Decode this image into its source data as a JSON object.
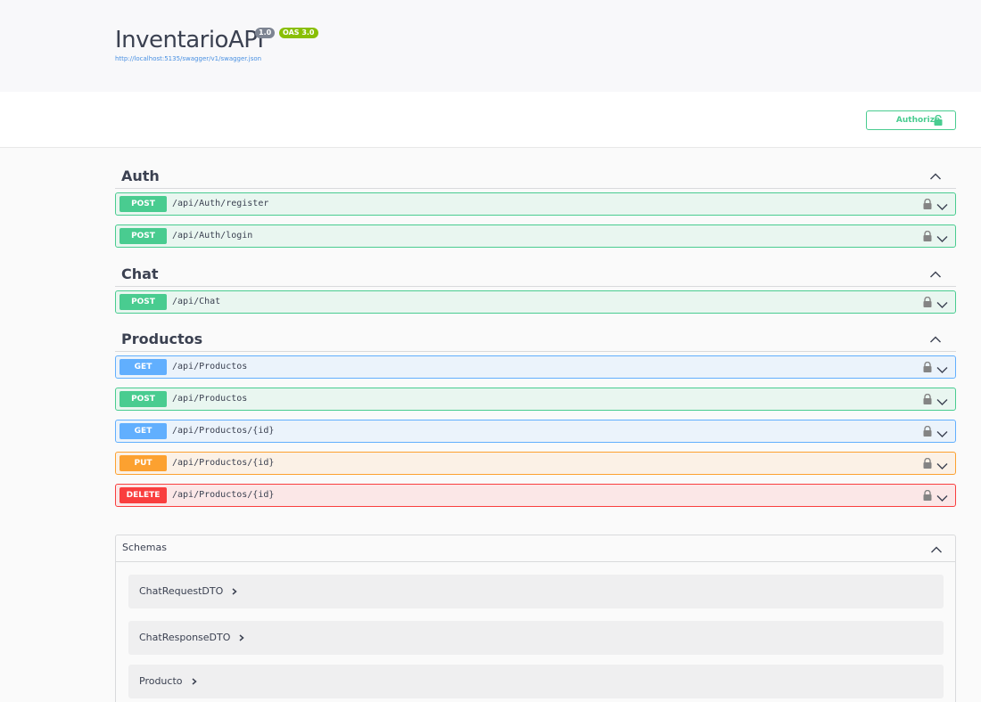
{
  "info": {
    "title": "InventarioAPI",
    "version": "1.0",
    "oas": "OAS 3.0",
    "url": "http://localhost:5135/swagger/v1/swagger.json"
  },
  "scheme": {
    "authorize_label": "Authorize"
  },
  "tags": [
    {
      "name": "Auth",
      "operations": [
        {
          "method": "POST",
          "path": "/api/Auth/register"
        },
        {
          "method": "POST",
          "path": "/api/Auth/login"
        }
      ]
    },
    {
      "name": "Chat",
      "operations": [
        {
          "method": "POST",
          "path": "/api/Chat"
        }
      ]
    },
    {
      "name": "Productos",
      "operations": [
        {
          "method": "GET",
          "path": "/api/Productos"
        },
        {
          "method": "POST",
          "path": "/api/Productos"
        },
        {
          "method": "GET",
          "path": "/api/Productos/{id}"
        },
        {
          "method": "PUT",
          "path": "/api/Productos/{id}"
        },
        {
          "method": "DELETE",
          "path": "/api/Productos/{id}"
        }
      ]
    }
  ],
  "schemas": {
    "title": "Schemas",
    "models": [
      "ChatRequestDTO",
      "ChatResponseDTO",
      "Producto"
    ]
  },
  "colors": {
    "post": "#49cc90",
    "get": "#61affe",
    "put": "#fca130",
    "delete": "#f93e3e"
  }
}
